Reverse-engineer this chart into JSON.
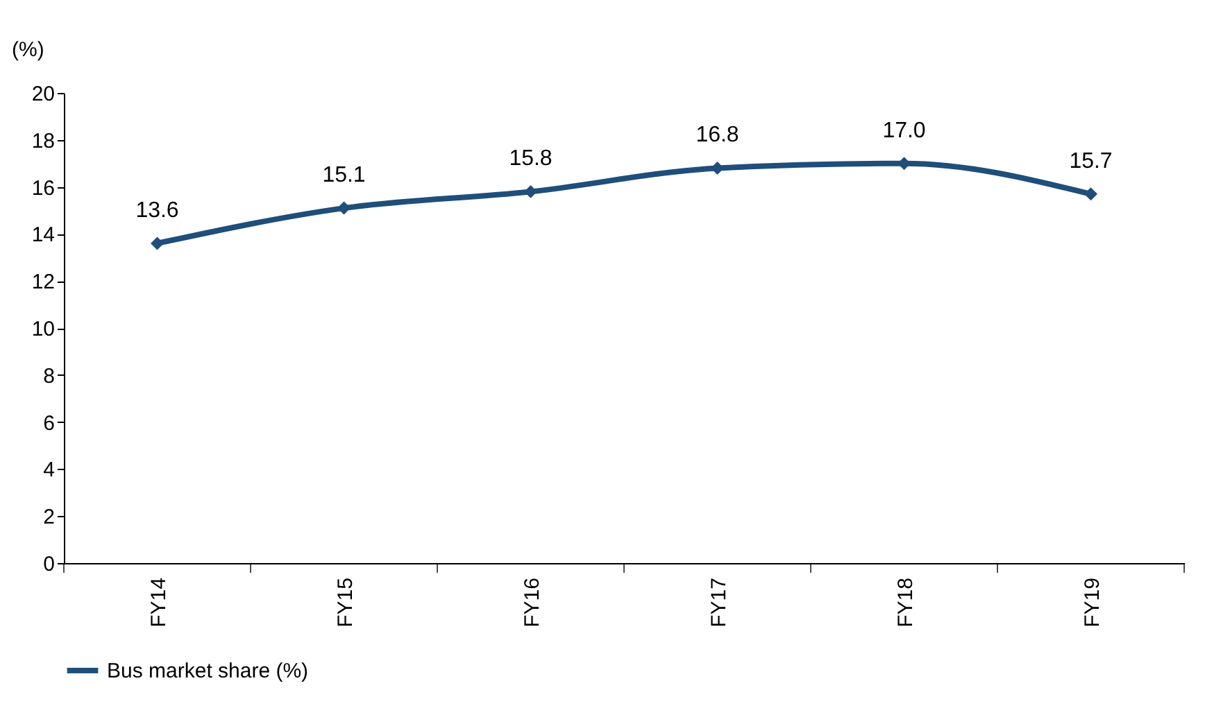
{
  "chart_data": {
    "type": "line",
    "ylabel": "(%)",
    "categories": [
      "FY14",
      "FY15",
      "FY16",
      "FY17",
      "FY18",
      "FY19"
    ],
    "series": [
      {
        "name": "Bus market share (%)",
        "color": "#1f4e7a",
        "values": [
          13.6,
          15.1,
          15.8,
          16.8,
          17.0,
          15.7
        ],
        "value_labels": [
          "13.6",
          "15.1",
          "15.8",
          "16.8",
          "17.0",
          "15.7"
        ]
      }
    ],
    "ylim": [
      0,
      20
    ],
    "yticks": [
      0,
      2,
      4,
      6,
      8,
      10,
      12,
      14,
      16,
      18,
      20
    ],
    "grid": false,
    "legend": "bottom",
    "marker": "diamond",
    "line_style": "solid"
  }
}
